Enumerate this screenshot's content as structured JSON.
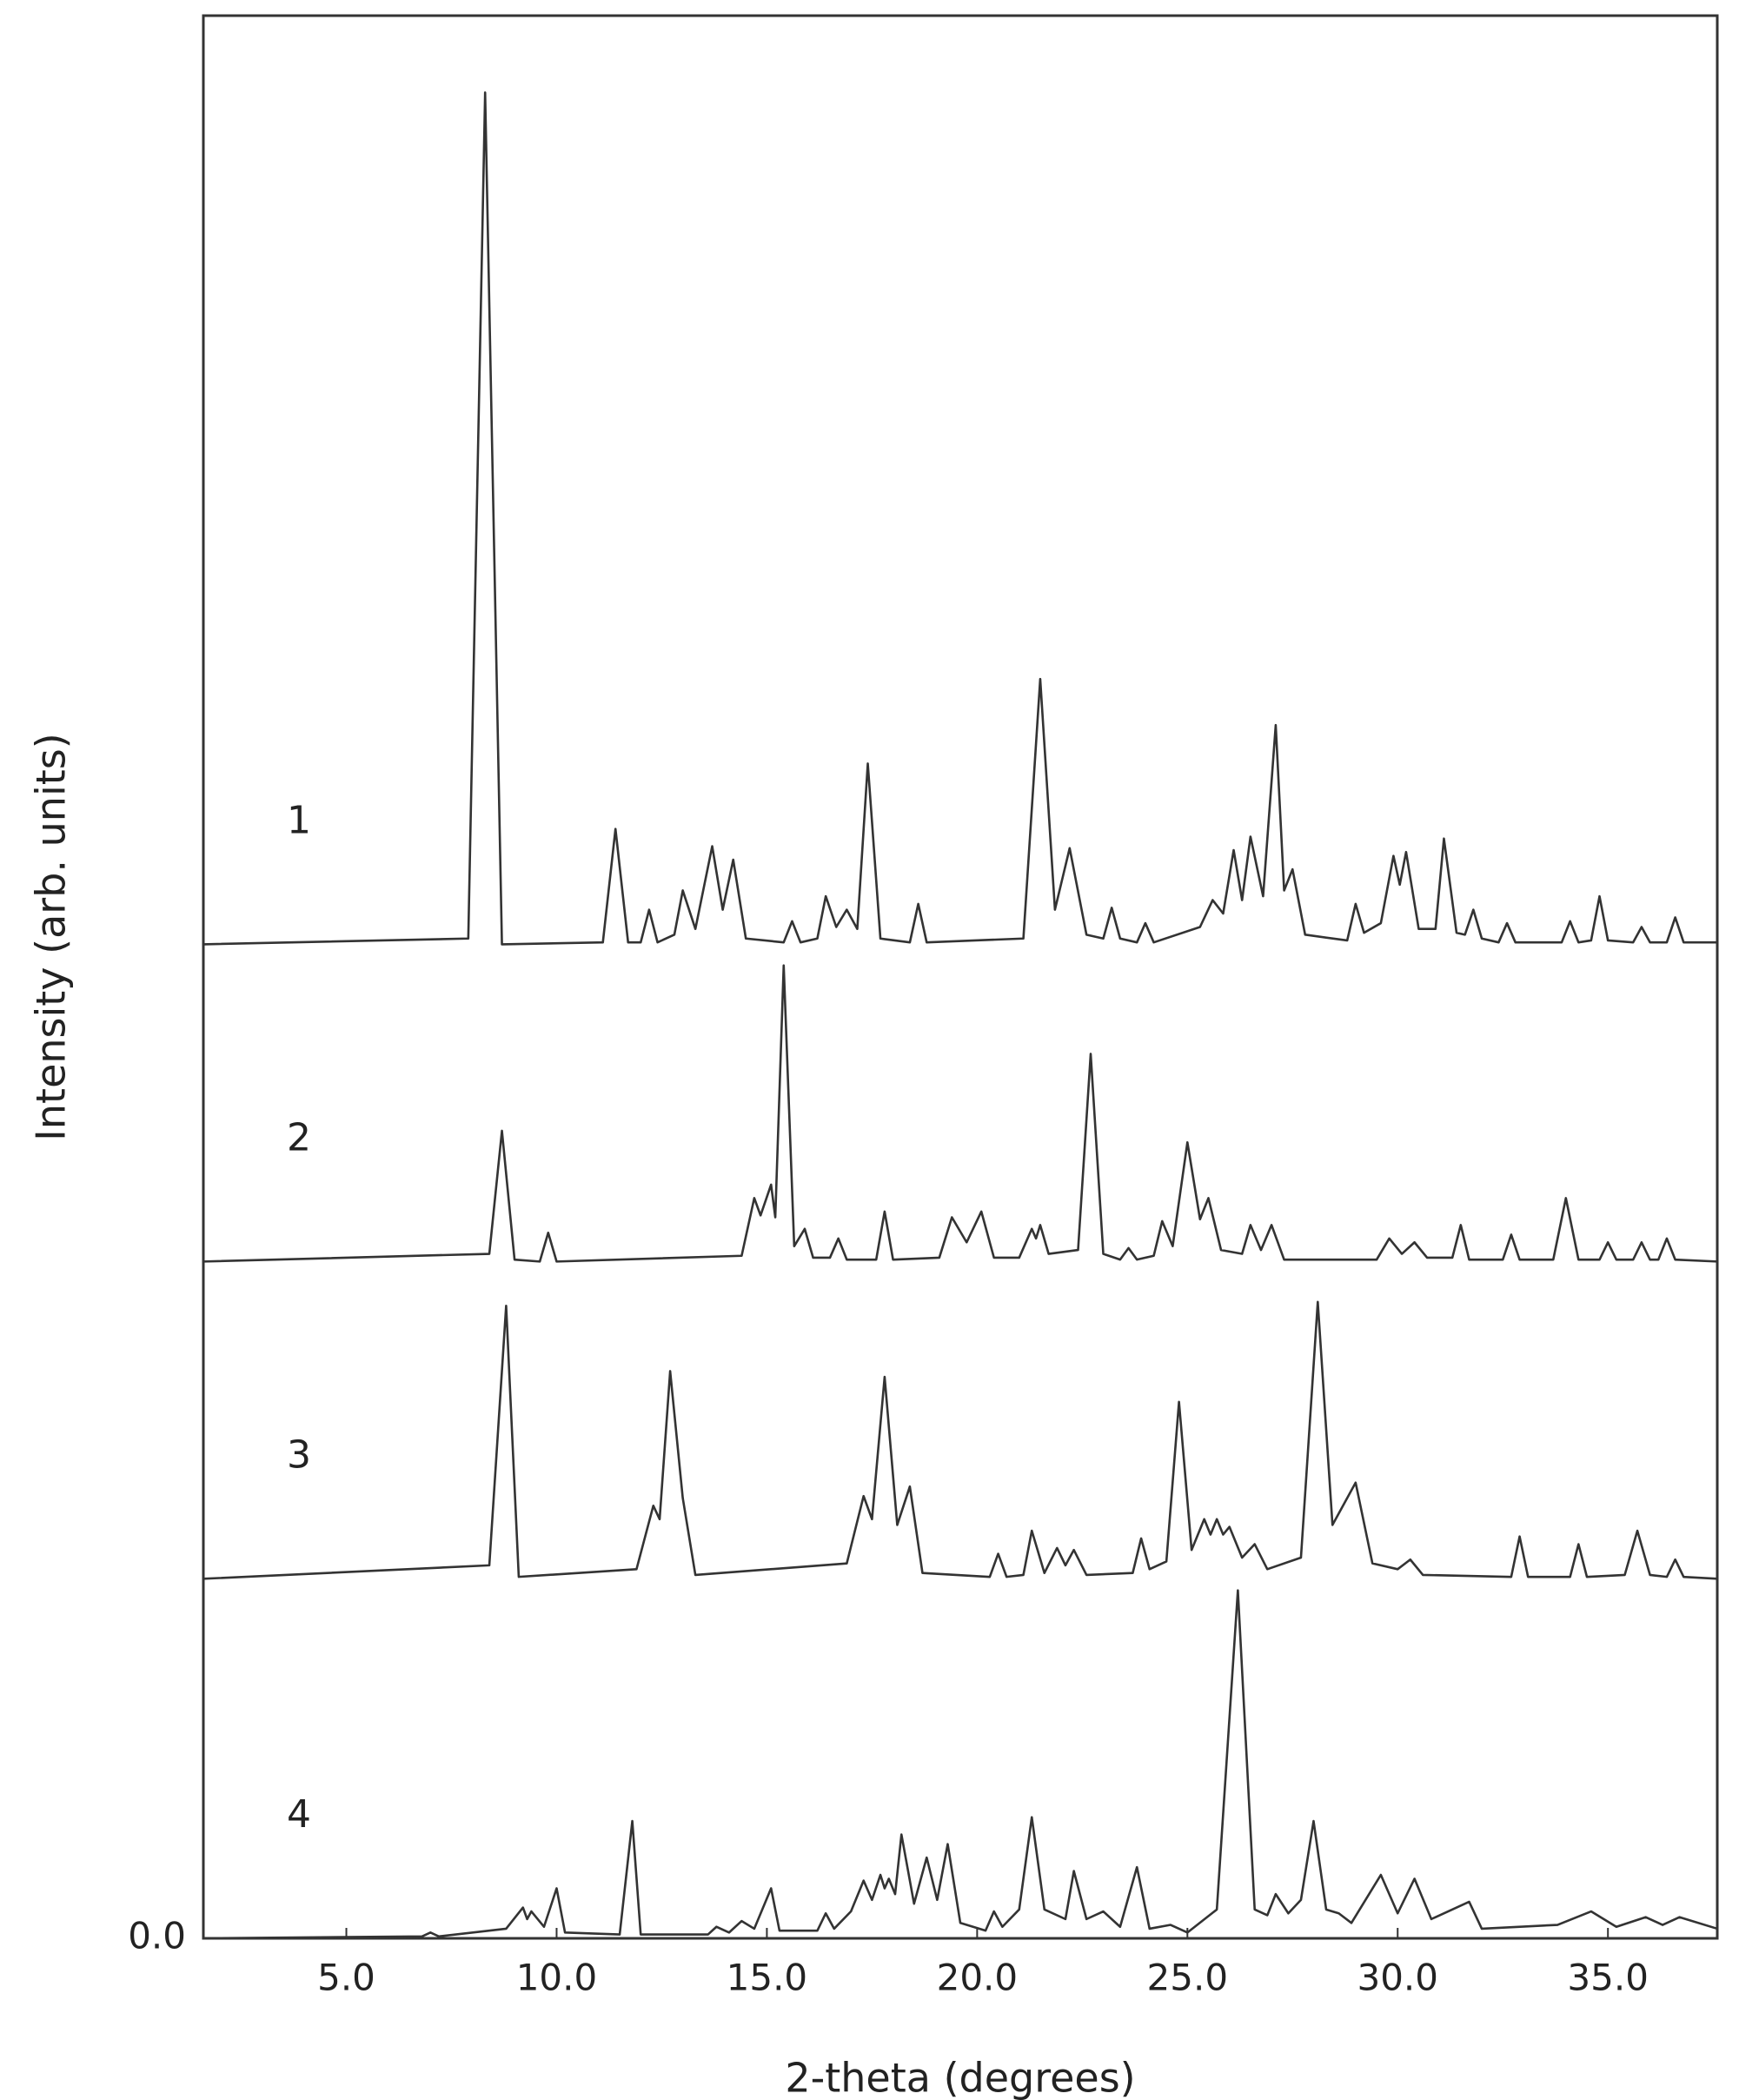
{
  "chart_data": {
    "type": "line",
    "xlabel": "2-theta (degrees)",
    "ylabel": "Intensity (arb. units)",
    "xlim": [
      1.6,
      37.6
    ],
    "xticks": [
      {
        "value": 5,
        "label": "5.0"
      },
      {
        "value": 10,
        "label": "10.0"
      },
      {
        "value": 15,
        "label": "15.0"
      },
      {
        "value": 20,
        "label": "20.0"
      },
      {
        "value": 25,
        "label": "25.0"
      },
      {
        "value": 30,
        "label": "30.0"
      },
      {
        "value": 35,
        "label": "35.0"
      }
    ],
    "ylim": [
      0,
      100
    ],
    "yticks": [
      {
        "value": 0,
        "label": "0.0"
      }
    ],
    "grid": false,
    "series": [
      {
        "name": "1",
        "color": "#333333",
        "x": [
          1.6,
          7.9,
          8.3,
          8.7,
          11.1,
          11.4,
          11.7,
          12.0,
          12.2,
          12.4,
          12.8,
          13.0,
          13.3,
          13.7,
          13.95,
          14.2,
          14.5,
          15.4,
          15.6,
          15.8,
          16.2,
          16.4,
          16.65,
          16.9,
          17.15,
          17.4,
          17.7,
          18.4,
          18.6,
          18.8,
          21.1,
          21.5,
          21.85,
          22.2,
          22.6,
          23.0,
          23.2,
          23.4,
          23.8,
          24.0,
          24.2,
          25.3,
          25.6,
          25.85,
          26.1,
          26.3,
          26.5,
          26.8,
          27.1,
          27.3,
          27.5,
          27.8,
          28.8,
          29.0,
          29.2,
          29.6,
          29.9,
          30.05,
          30.2,
          30.5,
          30.9,
          31.1,
          31.4,
          31.6,
          31.8,
          32.0,
          32.4,
          32.6,
          32.8,
          33.9,
          34.1,
          34.3,
          34.6,
          34.8,
          35.0,
          35.6,
          35.8,
          36.0,
          36.4,
          36.6,
          36.8,
          37.6
        ],
        "values": [
          51.7,
          52.0,
          96.0,
          51.7,
          51.8,
          57.7,
          51.8,
          51.8,
          53.5,
          51.8,
          52.2,
          54.5,
          52.5,
          56.8,
          53.5,
          56.1,
          52.0,
          51.8,
          52.9,
          51.8,
          52.0,
          54.2,
          52.6,
          53.5,
          52.5,
          61.1,
          52.0,
          51.8,
          53.8,
          51.8,
          52.0,
          65.5,
          53.5,
          56.7,
          52.2,
          52.0,
          53.6,
          52.0,
          51.8,
          52.8,
          51.8,
          52.6,
          54.0,
          53.3,
          56.6,
          54.0,
          57.3,
          54.2,
          63.1,
          54.5,
          55.6,
          52.2,
          51.9,
          53.8,
          52.3,
          52.8,
          56.3,
          54.8,
          56.5,
          52.5,
          52.5,
          57.2,
          52.3,
          52.2,
          53.5,
          52.0,
          51.8,
          52.8,
          51.8,
          51.8,
          52.9,
          51.8,
          51.9,
          54.2,
          51.9,
          51.8,
          52.6,
          51.8,
          51.8,
          53.1,
          51.8,
          51.8
        ]
      },
      {
        "name": "2",
        "color": "#333333",
        "x": [
          1.6,
          8.4,
          8.7,
          9.0,
          9.6,
          9.8,
          10.0,
          14.4,
          14.7,
          14.85,
          15.1,
          15.2,
          15.4,
          15.65,
          15.9,
          16.1,
          16.5,
          16.7,
          16.9,
          17.6,
          17.8,
          18.0,
          19.1,
          19.4,
          19.75,
          20.1,
          20.4,
          21.0,
          21.3,
          21.4,
          21.5,
          21.7,
          22.4,
          22.7,
          23.0,
          23.4,
          23.6,
          23.8,
          24.2,
          24.4,
          24.65,
          25.0,
          25.3,
          25.5,
          25.8,
          26.3,
          26.5,
          26.75,
          27.0,
          27.3,
          29.5,
          29.8,
          30.1,
          30.4,
          30.7,
          31.3,
          31.5,
          31.7,
          32.5,
          32.7,
          32.9,
          33.7,
          34.0,
          34.3,
          34.8,
          35.0,
          35.2,
          35.6,
          35.8,
          36.0,
          36.2,
          36.4,
          36.6,
          37.6
        ],
        "values": [
          35.2,
          35.6,
          42.0,
          35.3,
          35.2,
          36.7,
          35.2,
          35.5,
          38.5,
          37.6,
          39.2,
          37.5,
          50.6,
          36.0,
          36.9,
          35.4,
          35.4,
          36.4,
          35.3,
          35.3,
          37.8,
          35.3,
          35.4,
          37.5,
          36.2,
          37.8,
          35.4,
          35.4,
          36.9,
          36.4,
          37.1,
          35.6,
          35.8,
          46.0,
          35.6,
          35.3,
          35.9,
          35.3,
          35.5,
          37.3,
          36.0,
          41.4,
          37.4,
          38.5,
          35.8,
          35.6,
          37.1,
          35.8,
          37.1,
          35.3,
          35.3,
          36.4,
          35.6,
          36.2,
          35.4,
          35.4,
          37.1,
          35.3,
          35.3,
          36.6,
          35.3,
          35.3,
          38.5,
          35.3,
          35.3,
          36.2,
          35.3,
          35.3,
          36.2,
          35.3,
          35.3,
          36.4,
          35.3,
          35.2
        ]
      },
      {
        "name": "3",
        "color": "#333333",
        "x": [
          1.6,
          8.4,
          8.8,
          9.1,
          11.9,
          12.3,
          12.45,
          12.7,
          13.0,
          13.3,
          16.9,
          17.3,
          17.5,
          17.8,
          18.1,
          18.4,
          18.7,
          20.3,
          20.5,
          20.7,
          21.1,
          21.3,
          21.6,
          21.9,
          22.1,
          22.3,
          22.6,
          23.7,
          23.9,
          24.1,
          24.5,
          24.8,
          25.1,
          25.4,
          25.55,
          25.7,
          25.85,
          26.0,
          26.3,
          26.6,
          26.9,
          27.7,
          28.1,
          28.45,
          29.0,
          29.4,
          30.0,
          30.3,
          30.6,
          32.7,
          32.9,
          33.1,
          34.1,
          34.3,
          34.5,
          35.4,
          35.7,
          36.0,
          36.4,
          36.6,
          36.8,
          37.6
        ],
        "values": [
          18.7,
          19.4,
          32.9,
          18.8,
          19.2,
          22.5,
          21.8,
          29.5,
          22.9,
          18.9,
          19.5,
          23.0,
          21.8,
          29.2,
          21.5,
          23.5,
          19.0,
          18.8,
          20.0,
          18.8,
          18.9,
          21.2,
          19.0,
          20.3,
          19.4,
          20.2,
          18.9,
          19.0,
          20.8,
          19.2,
          19.6,
          27.9,
          20.2,
          21.8,
          21.0,
          21.8,
          21.0,
          21.4,
          19.8,
          20.5,
          19.2,
          19.8,
          33.1,
          21.5,
          23.7,
          19.5,
          19.2,
          19.7,
          18.9,
          18.8,
          20.9,
          18.8,
          18.8,
          20.5,
          18.8,
          18.9,
          21.2,
          18.9,
          18.8,
          19.7,
          18.8,
          18.7
        ]
      },
      {
        "name": "4",
        "color": "#333333",
        "x": [
          1.6,
          6.8,
          7.0,
          7.2,
          8.8,
          9.2,
          9.3,
          9.4,
          9.7,
          10.0,
          10.2,
          11.5,
          11.8,
          12.0,
          13.6,
          13.8,
          14.1,
          14.4,
          14.7,
          15.1,
          15.3,
          16.2,
          16.4,
          16.6,
          17.0,
          17.3,
          17.5,
          17.7,
          17.8,
          17.9,
          18.05,
          18.2,
          18.5,
          18.8,
          19.05,
          19.3,
          19.6,
          20.2,
          20.4,
          20.6,
          21.0,
          21.3,
          21.6,
          22.1,
          22.3,
          22.6,
          23.0,
          23.4,
          23.8,
          24.1,
          24.6,
          25.0,
          25.7,
          26.2,
          26.6,
          26.9,
          27.1,
          27.4,
          27.7,
          28.0,
          28.3,
          28.6,
          28.9,
          29.6,
          30.0,
          30.4,
          30.8,
          31.7,
          32.0,
          33.8,
          34.6,
          35.2,
          35.9,
          36.3,
          36.7,
          37.6
        ],
        "values": [
          0,
          0.1,
          0.3,
          0.1,
          0.5,
          1.6,
          1.0,
          1.4,
          0.6,
          2.6,
          0.3,
          0.2,
          6.1,
          0.2,
          0.2,
          0.6,
          0.3,
          0.9,
          0.5,
          2.6,
          0.4,
          0.4,
          1.3,
          0.5,
          1.4,
          3.0,
          2.0,
          3.3,
          2.6,
          3.1,
          2.3,
          5.4,
          1.8,
          4.2,
          2.0,
          4.9,
          0.8,
          0.4,
          1.4,
          0.6,
          1.5,
          6.3,
          1.5,
          1.0,
          3.5,
          1.0,
          1.4,
          0.6,
          3.7,
          0.5,
          0.7,
          0.3,
          1.5,
          18.1,
          1.5,
          1.2,
          2.3,
          1.3,
          2.0,
          6.1,
          1.5,
          1.3,
          0.8,
          3.3,
          1.3,
          3.1,
          1.0,
          1.9,
          0.5,
          0.7,
          1.4,
          0.6,
          1.1,
          0.7,
          1.1,
          0.5
        ]
      }
    ]
  }
}
